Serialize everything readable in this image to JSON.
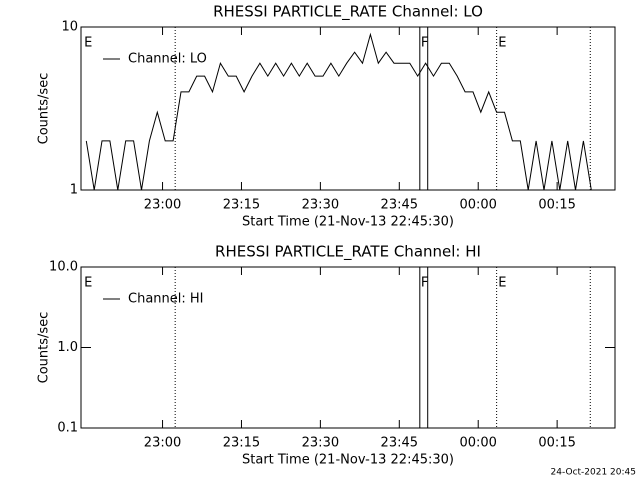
{
  "chart_data": [
    {
      "type": "line",
      "title": "RHESSI PARTICLE_RATE Channel: LO",
      "xlabel": "Start Time (21-Nov-13 22:45:30)",
      "ylabel": "Counts/sec",
      "log_y": true,
      "xlim": [
        -1,
        100.5
      ],
      "ylim": [
        1,
        10
      ],
      "xticks": [
        {
          "value": 14.5,
          "label": "23:00"
        },
        {
          "value": 29.5,
          "label": "23:15"
        },
        {
          "value": 44.5,
          "label": "23:30"
        },
        {
          "value": 59.5,
          "label": "23:45"
        },
        {
          "value": 74.5,
          "label": "00:00"
        },
        {
          "value": 89.5,
          "label": "00:15"
        }
      ],
      "yticks": [
        1,
        10
      ],
      "x": [
        0,
        1.5,
        3,
        4.5,
        6,
        7.5,
        9,
        10.5,
        12,
        13.5,
        15,
        16.5,
        18,
        19.5,
        21,
        22.5,
        24,
        25.5,
        27,
        28.5,
        30,
        31.5,
        33,
        34.5,
        36,
        37.5,
        39,
        40.5,
        42,
        43.5,
        45,
        46.5,
        48,
        49.5,
        51,
        52.5,
        54,
        55.5,
        57,
        58.5,
        60,
        61.5,
        63,
        64.5,
        66,
        67.5,
        69,
        70.5,
        72,
        73.5,
        75,
        76.5,
        78,
        79.5,
        81,
        82.5,
        84,
        85.5,
        87,
        88.5,
        90,
        91.5,
        93,
        94.5,
        96
      ],
      "series": [
        {
          "name": "Channel: LO",
          "color": "#000000",
          "values": [
            2,
            1,
            2,
            2,
            1,
            2,
            2,
            1,
            2,
            3,
            2,
            2,
            4,
            4,
            5,
            5,
            4,
            6,
            5,
            5,
            4,
            5,
            6,
            5,
            6,
            5,
            6,
            5,
            6,
            5,
            5,
            6,
            5,
            6,
            7,
            6,
            9,
            6,
            7,
            6,
            6,
            6,
            5,
            6,
            5,
            6,
            6,
            5,
            4,
            4,
            3,
            4,
            3,
            3,
            2,
            2,
            1,
            2,
            1,
            2,
            1,
            2,
            1,
            2,
            1
          ]
        }
      ],
      "vlines": [
        {
          "x": 16.9,
          "style": "dotted"
        },
        {
          "x": 63.4,
          "style": "solid"
        },
        {
          "x": 64.9,
          "style": "solid"
        },
        {
          "x": 78,
          "style": "dotted"
        },
        {
          "x": 95.8,
          "style": "dotted"
        }
      ],
      "annotations": [
        {
          "text": "E",
          "x": -0.4
        },
        {
          "text": "F",
          "x": 63.6
        },
        {
          "text": "E",
          "x": 78.3
        }
      ]
    },
    {
      "type": "line",
      "title": "RHESSI PARTICLE_RATE Channel: HI",
      "xlabel": "Start Time (21-Nov-13 22:45:30)",
      "ylabel": "Counts/sec",
      "log_y": true,
      "xlim": [
        -1,
        100.5
      ],
      "ylim": [
        0.1,
        10
      ],
      "xticks": [
        {
          "value": 14.5,
          "label": "23:00"
        },
        {
          "value": 29.5,
          "label": "23:15"
        },
        {
          "value": 44.5,
          "label": "23:30"
        },
        {
          "value": 59.5,
          "label": "23:45"
        },
        {
          "value": 74.5,
          "label": "00:00"
        },
        {
          "value": 89.5,
          "label": "00:15"
        }
      ],
      "yticks": [
        0.1,
        {
          "value": 1,
          "label": "1.0"
        },
        {
          "value": 10,
          "label": "10.0"
        }
      ],
      "x": [],
      "series": [
        {
          "name": "Channel: HI",
          "color": "#000000",
          "values": []
        }
      ],
      "vlines": [
        {
          "x": 16.9,
          "style": "dotted"
        },
        {
          "x": 63.4,
          "style": "solid"
        },
        {
          "x": 64.9,
          "style": "solid"
        },
        {
          "x": 78,
          "style": "dotted"
        },
        {
          "x": 95.8,
          "style": "dotted"
        }
      ],
      "annotations": [
        {
          "text": "E",
          "x": -0.4
        },
        {
          "text": "F",
          "x": 63.6
        },
        {
          "text": "E",
          "x": 78.3
        }
      ]
    }
  ],
  "footer": "24-Oct-2021 20:45"
}
